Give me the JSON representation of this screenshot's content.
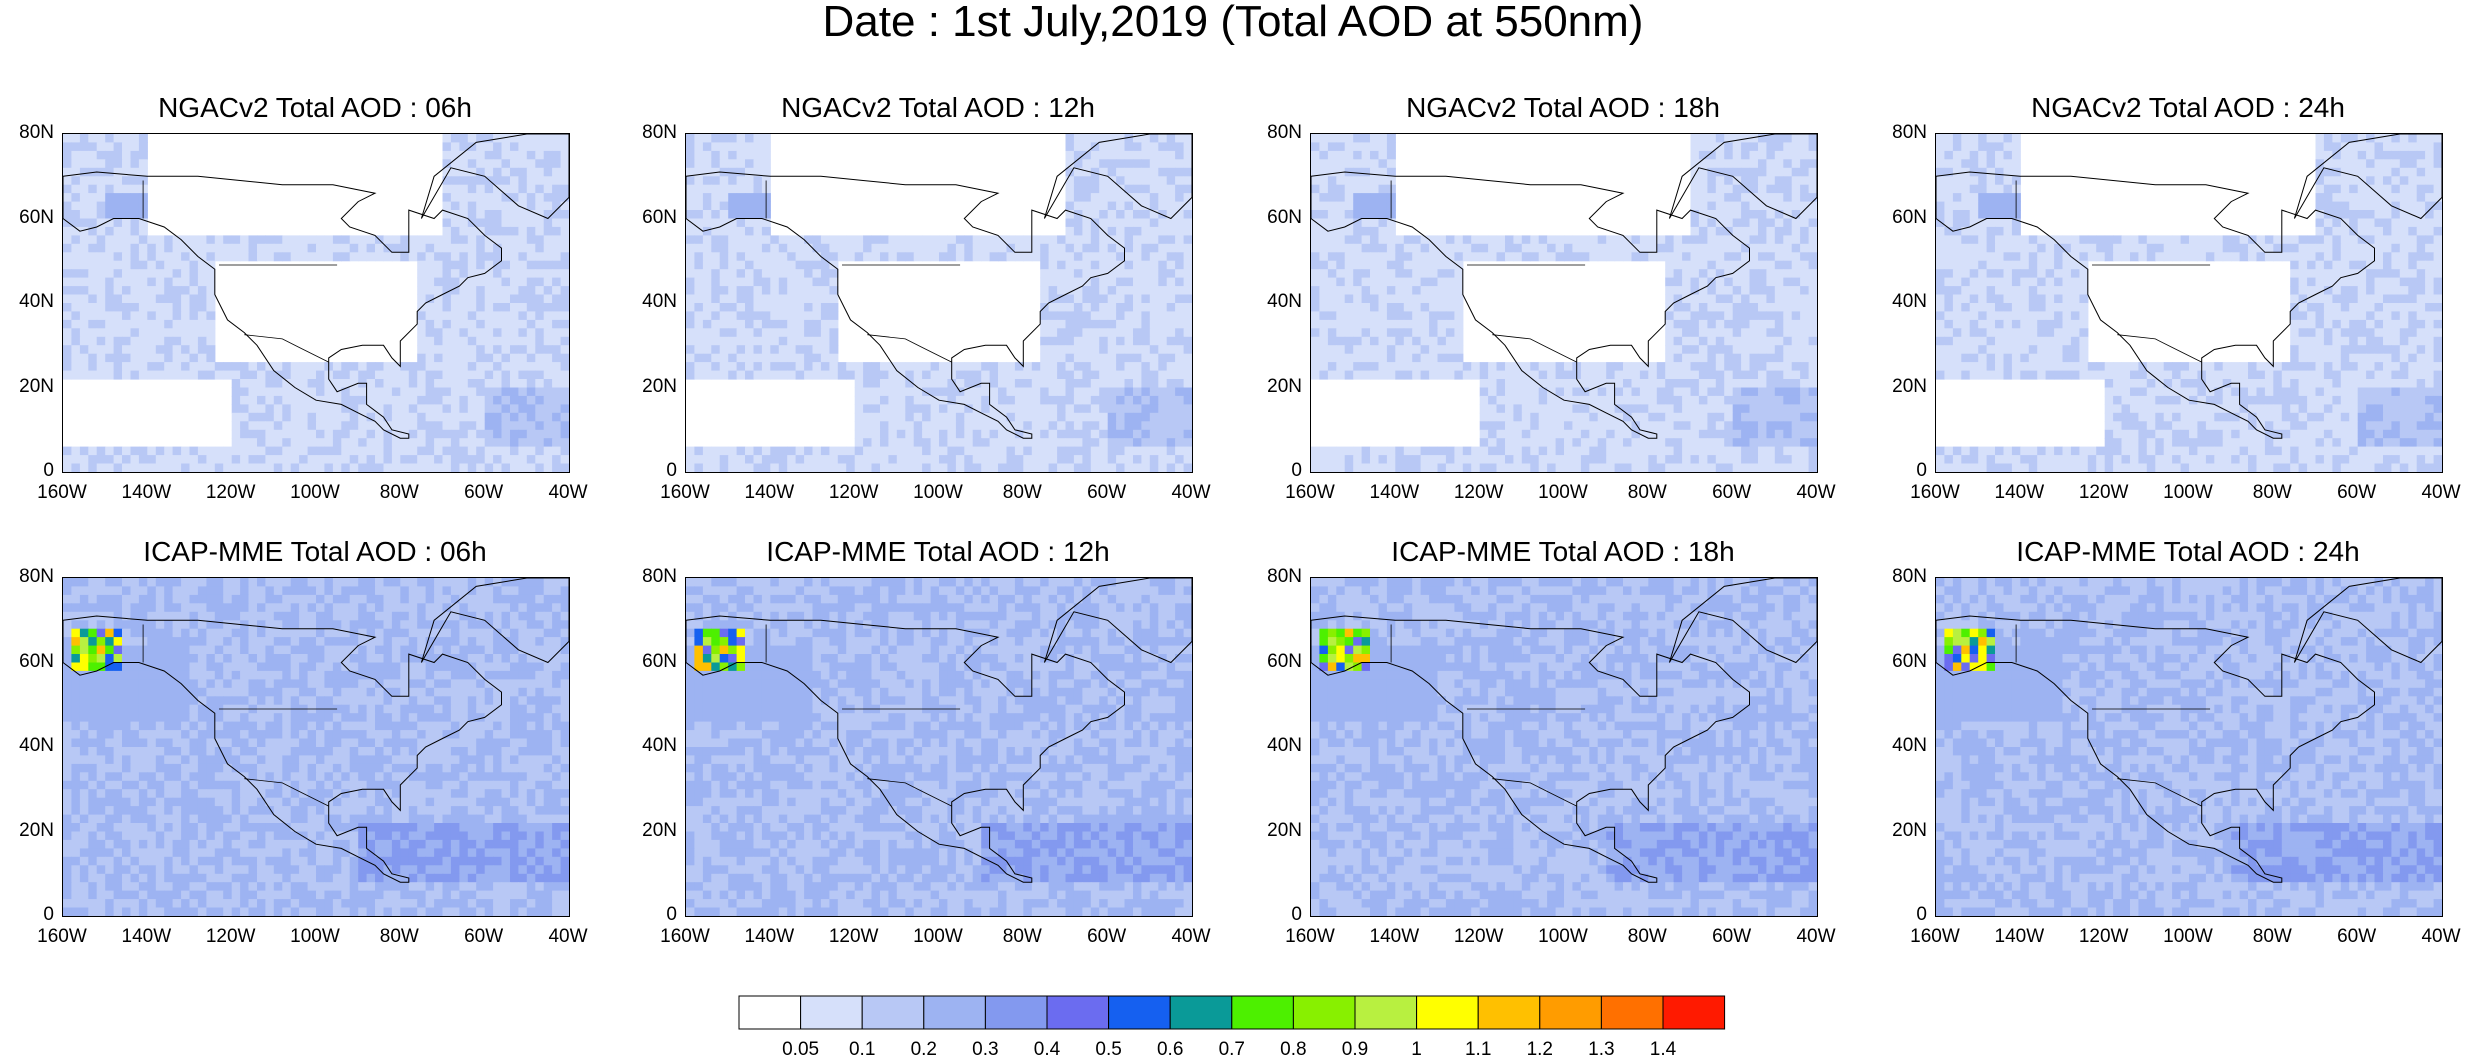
{
  "title": "Date : 1st July,2019 (Total AOD at 550nm)",
  "panels": [
    {
      "title": "NGACv2 Total AOD : 06h",
      "model": "NGACv2",
      "hour": "06h"
    },
    {
      "title": "NGACv2 Total AOD : 12h",
      "model": "NGACv2",
      "hour": "12h"
    },
    {
      "title": "NGACv2 Total AOD : 18h",
      "model": "NGACv2",
      "hour": "18h"
    },
    {
      "title": "NGACv2 Total AOD : 24h",
      "model": "NGACv2",
      "hour": "24h"
    },
    {
      "title": "ICAP-MME Total AOD : 06h",
      "model": "ICAP-MME",
      "hour": "06h"
    },
    {
      "title": "ICAP-MME Total AOD : 12h",
      "model": "ICAP-MME",
      "hour": "12h"
    },
    {
      "title": "ICAP-MME Total AOD : 18h",
      "model": "ICAP-MME",
      "hour": "18h"
    },
    {
      "title": "ICAP-MME Total AOD : 24h",
      "model": "ICAP-MME",
      "hour": "24h"
    }
  ],
  "lat_ticks": [
    "80N",
    "60N",
    "40N",
    "20N",
    "0"
  ],
  "lon_ticks": [
    "160W",
    "140W",
    "120W",
    "100W",
    "80W",
    "60W",
    "40W"
  ],
  "colorbar": {
    "levels": [
      "0.05",
      "0.1",
      "0.2",
      "0.3",
      "0.4",
      "0.5",
      "0.6",
      "0.7",
      "0.8",
      "0.9",
      "1",
      "1.1",
      "1.2",
      "1.3",
      "1.4"
    ],
    "colors": [
      "#ffffff",
      "#d6e0fa",
      "#b8c8f5",
      "#9db3f2",
      "#8399ef",
      "#6b6cf0",
      "#1560f0",
      "#0a9a98",
      "#4df000",
      "#88f000",
      "#b8f040",
      "#ffff00",
      "#ffc000",
      "#ff9c00",
      "#ff7000",
      "#ff1a00"
    ]
  }
}
